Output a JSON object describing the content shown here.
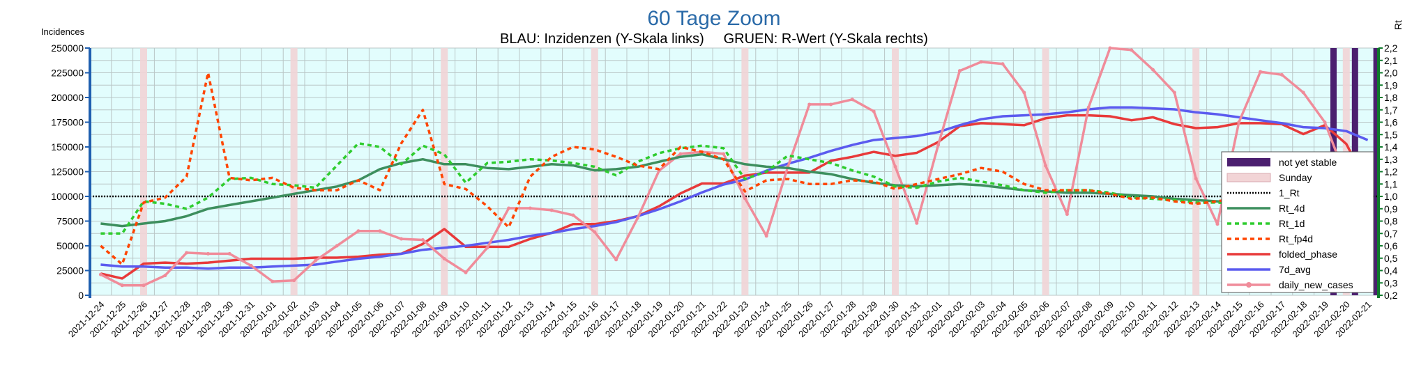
{
  "chart_data": {
    "type": "line",
    "title": "60 Tage Zoom",
    "subtitle": "BLAU: Inzidenzen (Y-Skala links)     GRUEN: R-Wert (Y-Skala rechts)",
    "ylabel": "Incidences",
    "ylabel_right": "Rt",
    "ylim": [
      0,
      250000
    ],
    "ylim_right": [
      0.2,
      2.2
    ],
    "yticks": [
      "0",
      "25000",
      "50000",
      "75000",
      "100000",
      "125000",
      "150000",
      "175000",
      "200000",
      "225000",
      "250000"
    ],
    "yticks_right": [
      "0,2",
      "0,3",
      "0,4",
      "0,5",
      "0,6",
      "0,7",
      "0,8",
      "0,9",
      "1,0",
      "1,1",
      "1,2",
      "1,3",
      "1,4",
      "1,5",
      "1,6",
      "1,7",
      "1,8",
      "1,9",
      "2,0",
      "2,1",
      "2,2"
    ],
    "grid": true,
    "legend_position": "right",
    "categories": [
      "2021-12-24",
      "2021-12-25",
      "2021-12-26",
      "2021-12-27",
      "2021-12-28",
      "2021-12-29",
      "2021-12-30",
      "2021-12-31",
      "2022-01-01",
      "2022-01-02",
      "2022-01-03",
      "2022-01-04",
      "2022-01-05",
      "2022-01-06",
      "2022-01-07",
      "2022-01-08",
      "2022-01-09",
      "2022-01-10",
      "2022-01-11",
      "2022-01-12",
      "2022-01-13",
      "2022-01-14",
      "2022-01-15",
      "2022-01-16",
      "2022-01-17",
      "2022-01-18",
      "2022-01-19",
      "2022-01-20",
      "2022-01-21",
      "2022-01-22",
      "2022-01-23",
      "2022-01-24",
      "2022-01-25",
      "2022-01-26",
      "2022-01-27",
      "2022-01-28",
      "2022-01-29",
      "2022-01-30",
      "2022-01-31",
      "2022-02-01",
      "2022-02-02",
      "2022-02-03",
      "2022-02-04",
      "2022-02-05",
      "2022-02-06",
      "2022-02-07",
      "2022-02-08",
      "2022-02-09",
      "2022-02-10",
      "2022-02-11",
      "2022-02-12",
      "2022-02-13",
      "2022-02-14",
      "2022-02-15",
      "2022-02-16",
      "2022-02-17",
      "2022-02-18",
      "2022-02-19",
      "2022-02-20",
      "2022-02-21"
    ],
    "sundays": [
      "2021-12-26",
      "2022-01-02",
      "2022-01-09",
      "2022-01-16",
      "2022-01-23",
      "2022-01-30",
      "2022-02-06",
      "2022-02-13",
      "2022-02-20"
    ],
    "not_yet_stable": [
      "2022-02-19",
      "2022-02-20",
      "2022-02-21"
    ],
    "reference_line": {
      "name": "1_Rt",
      "value": 1.0,
      "axis": "right"
    },
    "series": [
      {
        "name": "not yet stable",
        "kind": "band",
        "color": "#4b1f6f"
      },
      {
        "name": "Sunday",
        "kind": "band",
        "color": "#f2d4d6"
      },
      {
        "name": "1_Rt",
        "kind": "reference",
        "color": "#000000"
      },
      {
        "name": "Rt_4d",
        "axis": "right",
        "color": "#3d8f5e",
        "style": "solid",
        "values": [
          0.78,
          0.76,
          0.78,
          0.8,
          0.84,
          0.9,
          0.93,
          0.96,
          0.99,
          1.02,
          1.05,
          1.08,
          1.13,
          1.22,
          1.27,
          1.3,
          1.26,
          1.26,
          1.23,
          1.22,
          1.24,
          1.26,
          1.25,
          1.21,
          1.22,
          1.24,
          1.28,
          1.32,
          1.34,
          1.3,
          1.26,
          1.24,
          1.23,
          1.2,
          1.18,
          1.14,
          1.11,
          1.09,
          1.08,
          1.09,
          1.1,
          1.09,
          1.07,
          1.05,
          1.04,
          1.03,
          1.03,
          1.02,
          1.01,
          1.0,
          0.98,
          0.97,
          0.96,
          0.95,
          0.94,
          0.93,
          0.92,
          0.91,
          0.9,
          0.85
        ]
      },
      {
        "name": "Rt_1d",
        "axis": "right",
        "color": "#2ecc2e",
        "style": "dotted",
        "values": [
          0.7,
          0.7,
          0.96,
          0.94,
          0.9,
          0.99,
          1.14,
          1.15,
          1.1,
          1.09,
          1.07,
          1.25,
          1.43,
          1.4,
          1.26,
          1.41,
          1.34,
          1.11,
          1.27,
          1.28,
          1.3,
          1.29,
          1.27,
          1.24,
          1.17,
          1.28,
          1.35,
          1.39,
          1.41,
          1.39,
          1.14,
          1.2,
          1.33,
          1.3,
          1.27,
          1.21,
          1.16,
          1.08,
          1.07,
          1.12,
          1.15,
          1.12,
          1.09,
          1.05,
          1.03,
          1.05,
          1.05,
          1.03,
          0.99,
          0.98,
          0.97,
          0.95,
          0.95,
          0.94,
          0.94,
          0.93,
          0.93,
          0.88,
          0.95,
          0.87
        ]
      },
      {
        "name": "Rt_fp4d",
        "axis": "right",
        "color": "#ff4500",
        "style": "dotted",
        "values": [
          0.6,
          0.45,
          0.95,
          0.99,
          1.16,
          2.0,
          1.15,
          1.13,
          1.15,
          1.07,
          1.05,
          1.05,
          1.13,
          1.05,
          1.43,
          1.7,
          1.1,
          1.06,
          0.92,
          0.75,
          1.16,
          1.32,
          1.4,
          1.38,
          1.32,
          1.25,
          1.22,
          1.4,
          1.36,
          1.3,
          1.04,
          1.13,
          1.14,
          1.1,
          1.1,
          1.13,
          1.12,
          1.06,
          1.1,
          1.14,
          1.18,
          1.23,
          1.2,
          1.1,
          1.05,
          1.05,
          1.05,
          1.02,
          0.98,
          0.99,
          0.96,
          0.94,
          0.96,
          0.99,
          1.0,
          1.0,
          0.97,
          0.93,
          0.82,
          0.65
        ]
      }
    ],
    "series_left": [
      {
        "name": "folded_phase",
        "axis": "left",
        "color": "#e83a3a",
        "style": "solid",
        "values": [
          22000,
          17000,
          32000,
          33000,
          32000,
          33000,
          35000,
          37000,
          37000,
          37000,
          38000,
          38000,
          39000,
          41000,
          42000,
          52000,
          67000,
          49000,
          49000,
          49000,
          57000,
          63000,
          72000,
          72000,
          75000,
          80000,
          90000,
          103000,
          113000,
          113000,
          121000,
          124000,
          124000,
          124000,
          136000,
          140000,
          145000,
          141000,
          144000,
          155000,
          171000,
          174000,
          173000,
          172000,
          179000,
          182000,
          182000,
          181000,
          177000,
          180000,
          173000,
          169000,
          170000,
          174000,
          174000,
          173000,
          163000,
          172000,
          153000,
          112000
        ]
      },
      {
        "name": "7d_avg",
        "axis": "left",
        "color": "#5b5bef",
        "style": "solid",
        "values": [
          31000,
          29000,
          29000,
          28000,
          28000,
          27000,
          28000,
          28000,
          29000,
          30000,
          31000,
          34000,
          37000,
          39000,
          42000,
          46000,
          48000,
          50000,
          53000,
          56000,
          60000,
          63000,
          67000,
          70000,
          74000,
          80000,
          87000,
          95000,
          104000,
          112000,
          117000,
          126000,
          133000,
          139000,
          146000,
          152000,
          157000,
          159000,
          161000,
          165000,
          172000,
          178000,
          181000,
          182000,
          183000,
          185000,
          188000,
          190000,
          190000,
          189000,
          188000,
          185000,
          183000,
          180000,
          177000,
          174000,
          170000,
          169000,
          166000,
          157000
        ]
      },
      {
        "name": "daily_new_cases",
        "axis": "left",
        "color": "#f08c9a",
        "style": "marker",
        "values": [
          21000,
          10000,
          10000,
          20000,
          43000,
          42000,
          42000,
          30000,
          14000,
          15000,
          35000,
          50000,
          65000,
          65000,
          57000,
          56000,
          37000,
          23000,
          48000,
          88000,
          88000,
          86000,
          81000,
          64000,
          36000,
          78000,
          126000,
          143000,
          145000,
          143000,
          98000,
          60000,
          130000,
          193000,
          193000,
          198000,
          186000,
          130000,
          73000,
          152000,
          227000,
          236000,
          234000,
          205000,
          131000,
          82000,
          190000,
          250000,
          248000,
          228000,
          205000,
          118000,
          72000,
          175000,
          226000,
          223000,
          205000,
          175000,
          118000,
          58000
        ]
      }
    ]
  },
  "legend": {
    "items": [
      {
        "label": "not yet stable",
        "color": "#4b1f6f",
        "style": "band"
      },
      {
        "label": "Sunday",
        "color": "#f2d4d6",
        "style": "band"
      },
      {
        "label": "1_Rt",
        "color": "#000000",
        "style": "dotted-thin"
      },
      {
        "label": "Rt_4d",
        "color": "#3d8f5e",
        "style": "solid"
      },
      {
        "label": "Rt_1d",
        "color": "#2ecc2e",
        "style": "dotted"
      },
      {
        "label": "Rt_fp4d",
        "color": "#ff4500",
        "style": "dotted"
      },
      {
        "label": "folded_phase",
        "color": "#e83a3a",
        "style": "solid"
      },
      {
        "label": "7d_avg",
        "color": "#5b5bef",
        "style": "solid"
      },
      {
        "label": "daily_new_cases",
        "color": "#f08c9a",
        "style": "marker"
      }
    ]
  },
  "colors": {
    "plot_bg": "#e2fdfd",
    "grid": "#b9c6c6",
    "left_axis": "#1f5fb0",
    "right_axis": "#0f7a2c",
    "title": "#2a6aa8"
  }
}
